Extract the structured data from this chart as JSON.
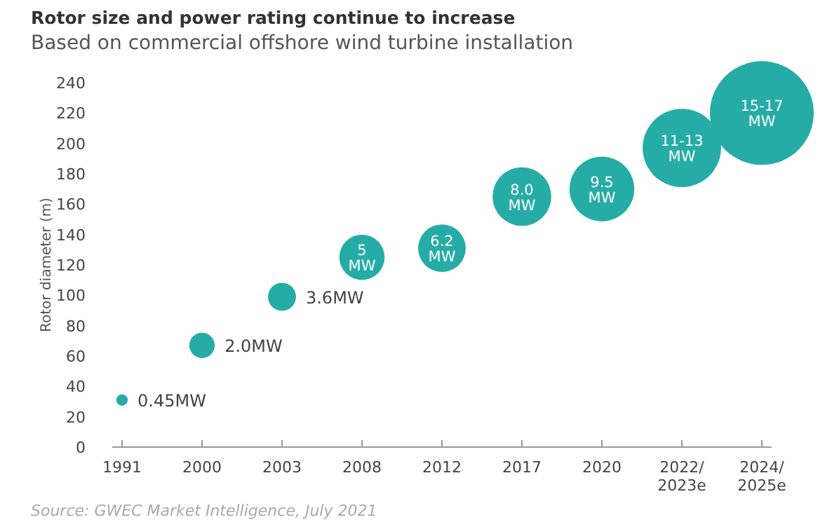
{
  "chart_data": {
    "type": "bubble",
    "title": "Rotor size and power rating continue to increase",
    "subtitle": "Based on commercial offshore wind turbine installation",
    "ylabel": "Rotor diameter (m)",
    "categories": [
      "1991",
      "2000",
      "2003",
      "2008",
      "2012",
      "2017",
      "2020",
      "2022/\n2023e",
      "2024/\n2025e"
    ],
    "values": [
      31,
      67,
      99,
      125,
      131,
      165,
      170,
      197,
      220
    ],
    "sizes": [
      0.012,
      0.06,
      0.073,
      0.19,
      0.21,
      0.32,
      0.39,
      0.57,
      1
    ],
    "color": "#26aca6",
    "ylim": [
      0,
      240
    ],
    "yticks": [
      0,
      20,
      40,
      60,
      80,
      100,
      120,
      140,
      160,
      180,
      200,
      220,
      240
    ],
    "annotations": [
      {
        "text": "0.45MW",
        "x": "1991",
        "y": 31
      },
      {
        "text": "2.0MW",
        "x": "2000",
        "y": 67
      },
      {
        "text": "3.6MW",
        "x": "2003",
        "y": 99
      },
      {
        "text": "5\nMW",
        "x": "2008",
        "y": 125
      },
      {
        "text": "6.2\nMW",
        "x": "2012",
        "y": 131
      },
      {
        "text": "8.0\nMW",
        "x": "2017",
        "y": 165
      },
      {
        "text": "9.5\nMW",
        "x": "2020",
        "y": 170
      },
      {
        "text": "11-13\nMW",
        "x": "2022/\n2023e",
        "y": 197
      },
      {
        "text": "15-17\nMW",
        "x": "2024/\n2025e",
        "y": 220
      },
      "Source: GWEC Market Intelligence, July 2021"
    ]
  }
}
